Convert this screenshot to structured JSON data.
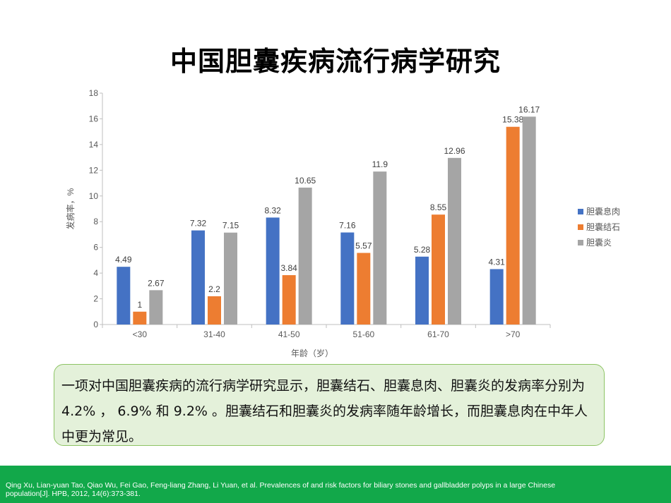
{
  "title": "中国胆囊疾病流行病学研究",
  "chart_data": {
    "type": "bar",
    "categories": [
      "<30",
      "31-40",
      "41-50",
      "51-60",
      "61-70",
      ">70"
    ],
    "series": [
      {
        "name": "胆囊息肉",
        "color": "#4472c4",
        "values": [
          4.49,
          7.32,
          8.32,
          7.16,
          5.28,
          4.31
        ]
      },
      {
        "name": "胆囊结石",
        "color": "#ed7d31",
        "values": [
          1,
          2.2,
          3.84,
          5.57,
          8.55,
          15.38
        ]
      },
      {
        "name": "胆囊炎",
        "color": "#a5a5a5",
        "values": [
          2.67,
          7.15,
          10.65,
          11.9,
          12.96,
          16.17
        ]
      }
    ],
    "xlabel": "年龄（岁）",
    "ylabel": "发病率，%",
    "ylim": [
      0,
      18
    ],
    "yticks": [
      0,
      2,
      4,
      6,
      8,
      10,
      12,
      14,
      16,
      18
    ],
    "legend_position": "right",
    "grid": false
  },
  "summary": {
    "text": "一项对中国胆囊疾病的流行病学研究显示，胆囊结石、胆囊息肉、胆囊炎的发病率分别为 4.2% ， 6.9% 和 9.2% 。胆囊结石和胆囊炎的发病率随年龄增长，而胆囊息肉在中年人中更为常见。"
  },
  "reference": "Qing Xu, Lian-yuan Tao, Qiao Wu, Fei Gao, Feng-liang Zhang, Li Yuan, et al. Prevalences of and risk factors for biliary stones and gallbladder polyps in a large Chinese population[J]. HPB, 2012, 14(6):373-381."
}
